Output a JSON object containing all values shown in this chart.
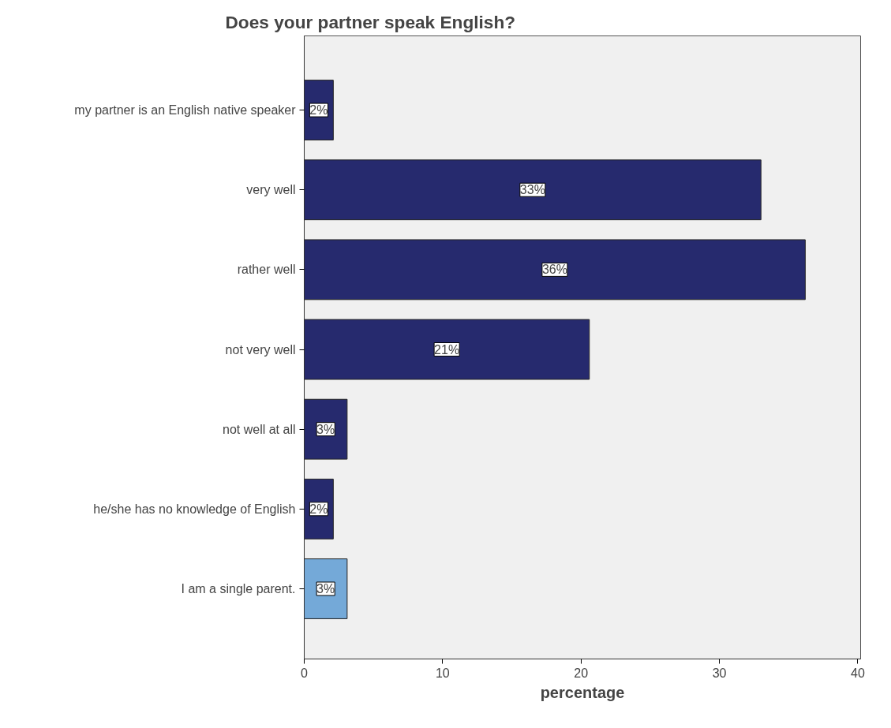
{
  "chart_data": {
    "type": "bar",
    "orientation": "horizontal",
    "title": "Does your partner speak English?",
    "xlabel": "percentage",
    "categories": [
      "my partner is an English native speaker",
      "very well",
      "rather well",
      "not very well",
      "not well at all",
      "he/she has no knowledge of English",
      "I am a single parent."
    ],
    "values": [
      2.1,
      33.0,
      36.2,
      20.6,
      3.1,
      2.1,
      3.1
    ],
    "colors": [
      "#262a6e",
      "#262a6e",
      "#262a6e",
      "#262a6e",
      "#262a6e",
      "#262a6e",
      "#74a9d8"
    ],
    "value_labels": [
      "2%",
      "33%",
      "36%",
      "21%",
      "3%",
      "2%",
      "3%"
    ],
    "xlim": [
      0,
      40.2
    ],
    "xticks": [
      0,
      10,
      20,
      30,
      40
    ],
    "grid": false
  }
}
